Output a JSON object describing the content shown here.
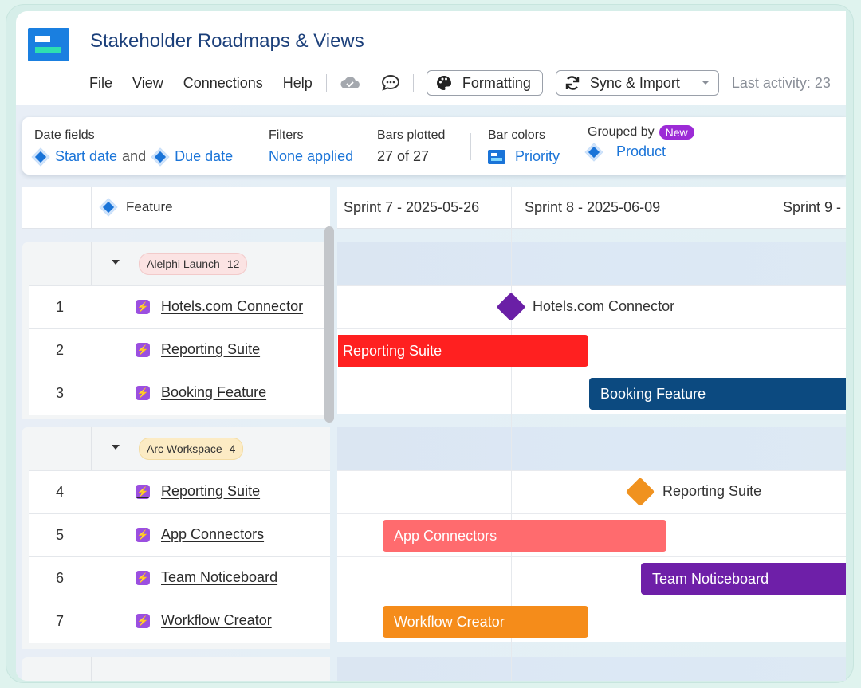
{
  "app": {
    "title": "Stakeholder Roadmaps & Views",
    "menu": [
      "File",
      "View",
      "Connections",
      "Help"
    ],
    "formatting_label": "Formatting",
    "sync_label": "Sync & Import",
    "last_activity": "Last activity: 23"
  },
  "info": {
    "date_fields_label": "Date fields",
    "start_date": "Start date",
    "and": "and",
    "due_date": "Due date",
    "filters_label": "Filters",
    "filters_value": "None applied",
    "bars_label": "Bars plotted",
    "bars_value": "27 of 27",
    "colors_label": "Bar colors",
    "colors_value": "Priority",
    "grouped_label": "Grouped by",
    "new_badge": "New",
    "grouped_value": "Product"
  },
  "grid": {
    "feature_header": "Feature",
    "sprints": [
      "Sprint 7 - 2025-05-26",
      "Sprint 8 - 2025-06-09",
      "Sprint 9 -"
    ]
  },
  "groups": [
    {
      "name": "Alelphi Launch",
      "count": "12",
      "pill_color": "#fbe3e3",
      "rows": [
        {
          "num": "1",
          "feature": "Hotels.com Connector",
          "bar": "Hotels.com Connector"
        },
        {
          "num": "2",
          "feature": "Reporting Suite",
          "bar": "Reporting Suite"
        },
        {
          "num": "3",
          "feature": "Booking Feature",
          "bar": "Booking Feature"
        }
      ]
    },
    {
      "name": "Arc Workspace",
      "count": "4",
      "pill_color": "#fcebc4",
      "rows": [
        {
          "num": "4",
          "feature": "Reporting Suite",
          "bar": "Reporting Suite"
        },
        {
          "num": "5",
          "feature": "App Connectors",
          "bar": "App Connectors"
        },
        {
          "num": "6",
          "feature": "Team Noticeboard",
          "bar": "Team Noticeboard"
        },
        {
          "num": "7",
          "feature": "Workflow Creator",
          "bar": "Workflow Creator"
        }
      ]
    }
  ],
  "colors": {
    "milestone_purple": "#6a1fa6",
    "milestone_orange": "#f0921f",
    "bar_red": "#ff2020",
    "bar_navy": "#0c4a80",
    "bar_salmon": "#ff6b6e",
    "bar_purple": "#6e1fa8",
    "bar_orange": "#f58c1a"
  }
}
